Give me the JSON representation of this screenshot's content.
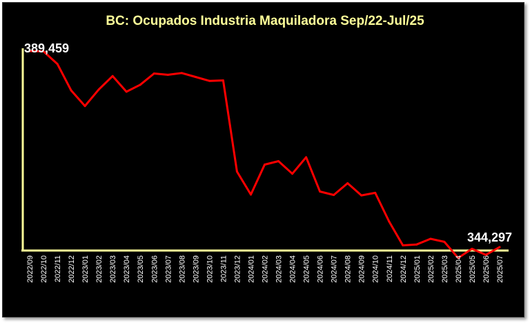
{
  "chart_data": {
    "type": "line",
    "title": "BC: Ocupados Industria Maquiladora Sep/22-Jul/25",
    "xlabel": "",
    "ylabel": "",
    "ylim": [
      343500,
      390100
    ],
    "grid": false,
    "colors": {
      "line": "#ff0000",
      "axis": "#ffff99",
      "background": "#000000",
      "title": "#ffff99",
      "text": "#ffffff"
    },
    "x": [
      "2022/09",
      "2022/10",
      "2022/11",
      "2022/12",
      "2023/01",
      "2023/02",
      "2023/03",
      "2023/04",
      "2023/05",
      "2023/06",
      "2023/07",
      "2023/08",
      "2023/09",
      "2023/10",
      "2023/11",
      "2023/12",
      "2024/01",
      "2024/02",
      "2024/03",
      "2024/04",
      "2024/05",
      "2024/06",
      "2024/07",
      "2024/08",
      "2024/09",
      "2024/10",
      "2024/11",
      "2024/12",
      "2025/01",
      "2025/02",
      "2025/03",
      "2025/04",
      "2025/05",
      "2025/06",
      "2025/07"
    ],
    "series": [
      {
        "values": [
          389459,
          389400,
          386500,
          380400,
          376800,
          380600,
          383700,
          380100,
          381700,
          384300,
          384000,
          384400,
          383500,
          382600,
          382700,
          361700,
          356400,
          363300,
          364100,
          361200,
          365000,
          357100,
          356300,
          359000,
          356200,
          356800,
          350200,
          344700,
          344900,
          346200,
          345500,
          341800,
          343900,
          342500,
          344297
        ]
      }
    ],
    "data_labels": {
      "first": "389,459",
      "last": "344,297"
    }
  }
}
